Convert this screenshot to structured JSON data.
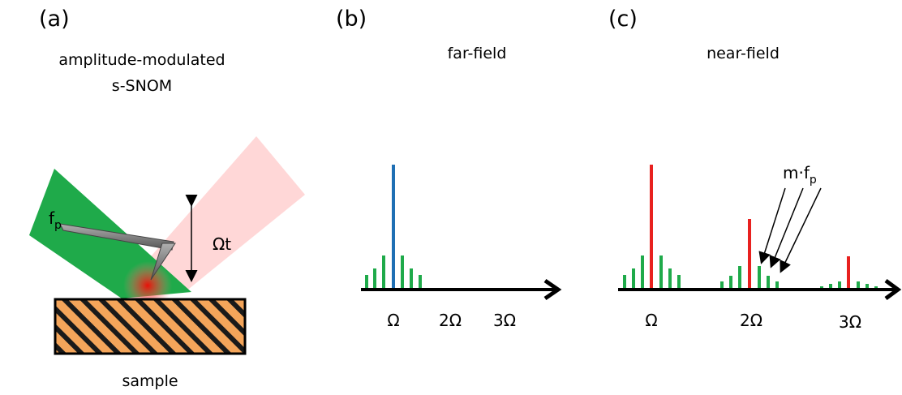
{
  "panels": [
    {
      "label": "(a)",
      "title": [
        "amplitude-modulated",
        "s-SNOM"
      ],
      "annotations": {
        "cantilever": {
          "base": "f",
          "subscript": "p"
        },
        "oscillation": "Ωt",
        "sample": "sample"
      }
    },
    {
      "label": "(b)",
      "title": "far-field",
      "axis_labels": [
        "Ω",
        "2Ω",
        "3Ω"
      ]
    },
    {
      "label": "(c)",
      "title": "near-field",
      "axis_labels": [
        "Ω",
        "2Ω",
        "3Ω"
      ],
      "annotation": {
        "base": "m·f",
        "subscript": "p"
      }
    }
  ]
}
